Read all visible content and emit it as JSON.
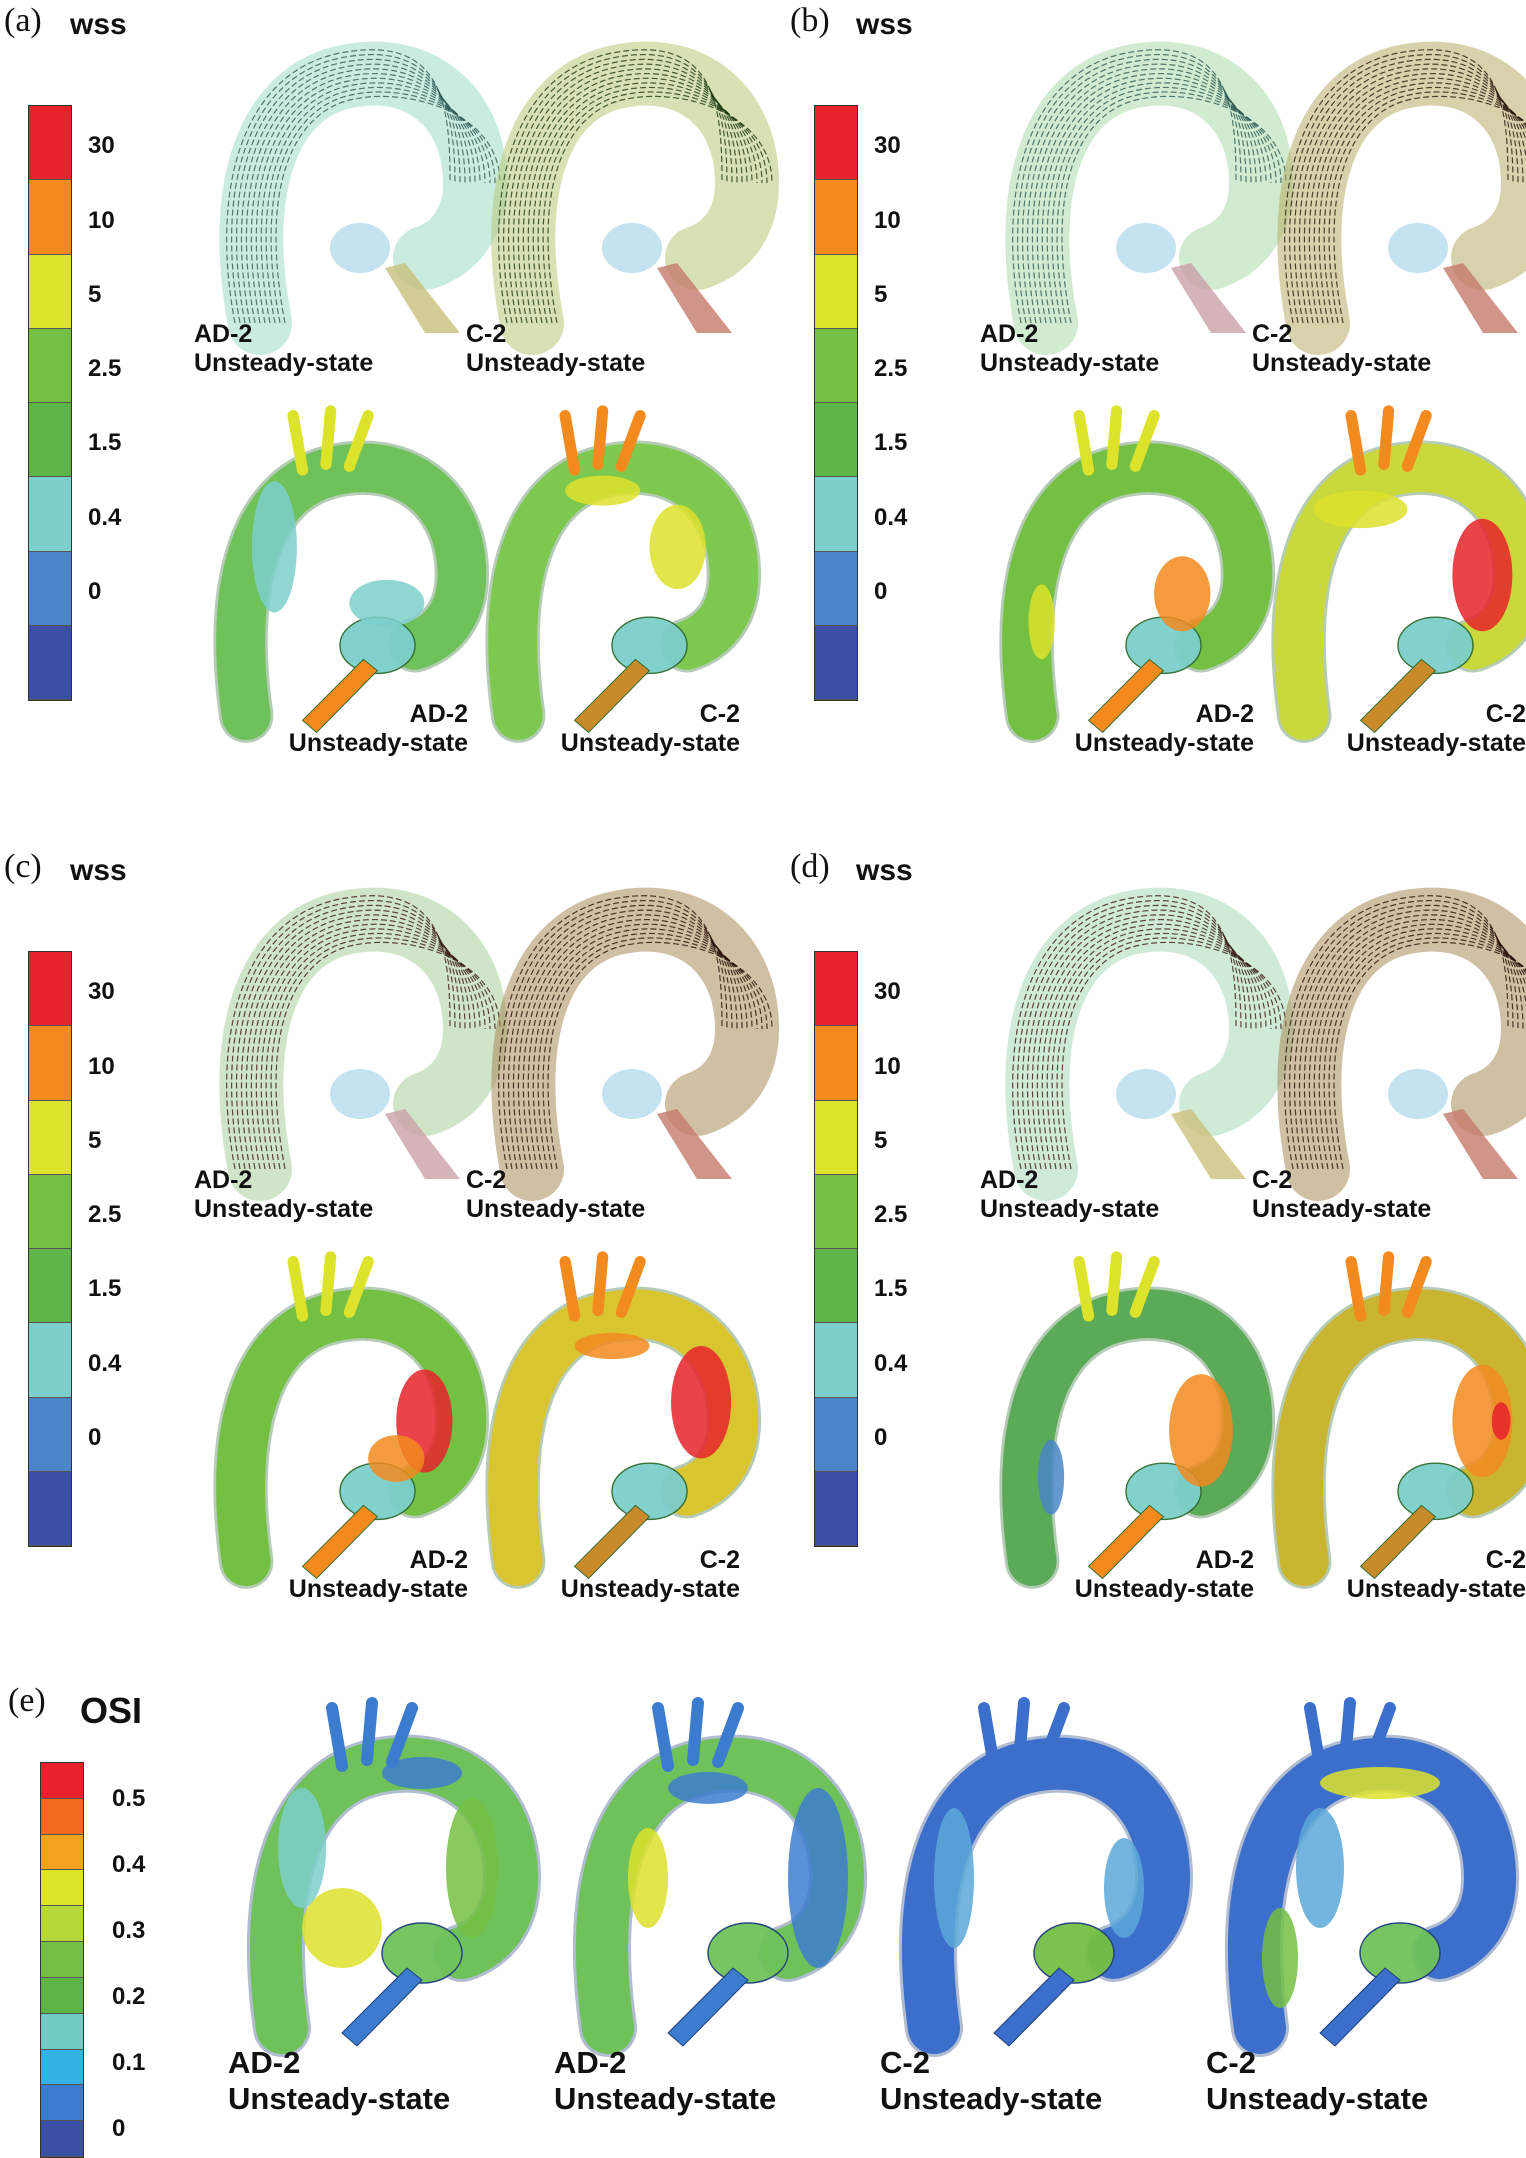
{
  "wss_panels": [
    {
      "label": "(a)",
      "title": "wss",
      "top": [
        {
          "model": "AD-2",
          "state": "Unsteady-state"
        },
        {
          "model": "C-2",
          "state": "Unsteady-state"
        }
      ],
      "bottom": [
        {
          "model": "AD-2",
          "state": "Unsteady-state"
        },
        {
          "model": "C-2",
          "state": "Unsteady-state"
        }
      ]
    },
    {
      "label": "(b)",
      "title": "wss",
      "top": [
        {
          "model": "AD-2",
          "state": "Unsteady-state"
        },
        {
          "model": "C-2",
          "state": "Unsteady-state"
        }
      ],
      "bottom": [
        {
          "model": "AD-2",
          "state": "Unsteady-state"
        },
        {
          "model": "C-2",
          "state": "Unsteady-state"
        }
      ]
    },
    {
      "label": "(c)",
      "title": "wss",
      "top": [
        {
          "model": "AD-2",
          "state": "Unsteady-state"
        },
        {
          "model": "C-2",
          "state": "Unsteady-state"
        }
      ],
      "bottom": [
        {
          "model": "AD-2",
          "state": "Unsteady-state"
        },
        {
          "model": "C-2",
          "state": "Unsteady-state"
        }
      ]
    },
    {
      "label": "(d)",
      "title": "wss",
      "top": [
        {
          "model": "AD-2",
          "state": "Unsteady-state"
        },
        {
          "model": "C-2",
          "state": "Unsteady-state"
        }
      ],
      "bottom": [
        {
          "model": "AD-2",
          "state": "Unsteady-state"
        },
        {
          "model": "C-2",
          "state": "Unsteady-state"
        }
      ]
    }
  ],
  "wss_ticks": [
    "30",
    "10",
    "5",
    "2.5",
    "1.5",
    "0.4",
    "0"
  ],
  "wss_colors": [
    "#e8222a",
    "#f28a1e",
    "#dde22a",
    "#74c043",
    "#5db547",
    "#7ccfcb",
    "#4a86c7",
    "#3b4fa4"
  ],
  "osi_panel": {
    "label": "(e)",
    "title": "OSI",
    "ticks": [
      "0.5",
      "0.4",
      "0.3",
      "0.2",
      "0.1",
      "0"
    ],
    "colors": [
      "#e8222a",
      "#f06a20",
      "#f2a21f",
      "#dde22a",
      "#b6d73a",
      "#74c043",
      "#5db547",
      "#6fcbc4",
      "#33b2e6",
      "#3c7ccf",
      "#3b4fa4"
    ],
    "models": [
      {
        "model": "AD-2",
        "state": "Unsteady-state"
      },
      {
        "model": "AD-2",
        "state": "Unsteady-state"
      },
      {
        "model": "C-2",
        "state": "Unsteady-state"
      },
      {
        "model": "C-2",
        "state": "Unsteady-state"
      }
    ]
  }
}
